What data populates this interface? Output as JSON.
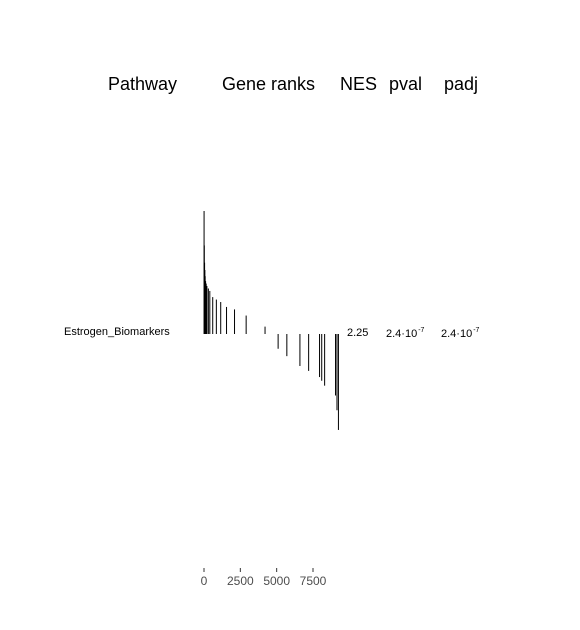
{
  "header": {
    "pathway": "Pathway",
    "gene_ranks": "Gene ranks",
    "nes": "NES",
    "pval": "pval",
    "padj": "padj"
  },
  "row": {
    "pathway": "Estrogen_Biomarkers",
    "nes": "2.25",
    "pval_mantissa": "2.4·10",
    "pval_exponent": "-7",
    "padj_mantissa": "2.4·10",
    "padj_exponent": "-7"
  },
  "chart_data": {
    "type": "bar",
    "title": "",
    "xlabel": "Gene ranks",
    "ylabel": "",
    "xlim": [
      0,
      9000
    ],
    "x_ticks": [
      0,
      2500,
      5000,
      7500
    ],
    "x_tick_labels": [
      "0",
      "2500",
      "5000",
      "7500"
    ],
    "series": [
      {
        "rank": [
          5,
          20,
          40,
          60,
          80,
          110,
          150,
          200,
          300,
          400,
          600,
          850,
          1150,
          1550,
          2100,
          2900,
          4200,
          5100,
          5700,
          6600,
          7200,
          7950,
          8100,
          8300,
          9050,
          9150,
          9250
        ],
        "value": [
          1.0,
          0.72,
          0.58,
          0.52,
          0.47,
          0.43,
          0.41,
          0.39,
          0.37,
          0.35,
          0.3,
          0.28,
          0.26,
          0.22,
          0.2,
          0.15,
          0.06,
          -0.12,
          -0.18,
          -0.26,
          -0.3,
          -0.35,
          -0.38,
          -0.42,
          -0.5,
          -0.62,
          -0.78
        ]
      }
    ]
  }
}
